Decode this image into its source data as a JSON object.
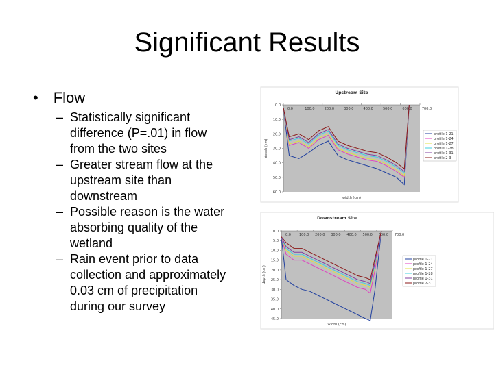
{
  "slide": {
    "title": "Significant Results",
    "bullets": [
      {
        "text": "Flow",
        "items": [
          "Statistically significant difference (P=.01) in flow from the two sites",
          "Greater stream flow at the upstream site than downstream",
          "Possible reason is the water absorbing quality of the wetland",
          "Rain event prior to data collection and approximately 0.03 cm of precipitation during our survey"
        ]
      }
    ]
  },
  "chart_data": [
    {
      "type": "line",
      "title": "Upstream Site",
      "x_label": "width (cm)",
      "y_label": "depth (cm)",
      "y_inverted": true,
      "x": [
        0,
        30,
        80,
        130,
        180,
        230,
        280,
        330,
        380,
        430,
        480,
        530,
        580,
        620,
        645
      ],
      "xlim": [
        0,
        700
      ],
      "ylim": [
        0,
        60
      ],
      "xticks": [
        {
          "value": 0,
          "label": "0.0"
        },
        {
          "value": 100,
          "label": "100.0"
        },
        {
          "value": 200,
          "label": "200.0"
        },
        {
          "value": 300,
          "label": "300.0"
        },
        {
          "value": 400,
          "label": "400.0"
        },
        {
          "value": 500,
          "label": "500.0"
        },
        {
          "value": 600,
          "label": "600.0"
        },
        {
          "value": 700,
          "label": "700.0"
        }
      ],
      "yticks": [
        {
          "value": 0,
          "label": "0.0"
        },
        {
          "value": 10,
          "label": "10.0"
        },
        {
          "value": 20,
          "label": "20.0"
        },
        {
          "value": 30,
          "label": "30.0"
        },
        {
          "value": 40,
          "label": "40.0"
        },
        {
          "value": 50,
          "label": "50.0"
        },
        {
          "value": 60,
          "label": "60.0"
        }
      ],
      "legend": "right",
      "series": [
        {
          "name": "profile 1-21",
          "color": "#1f3f9f",
          "values": [
            2,
            35,
            37,
            33,
            28,
            25,
            35,
            38,
            40,
            42,
            44,
            47,
            50,
            55,
            0
          ]
        },
        {
          "name": "profile 1-24",
          "color": "#e040c0",
          "values": [
            2,
            28,
            26,
            30,
            24,
            21,
            31,
            34,
            36,
            38,
            39,
            42,
            46,
            50,
            0
          ]
        },
        {
          "name": "profile 1-27",
          "color": "#e0e040",
          "values": [
            2,
            27,
            25,
            29,
            23,
            20,
            30,
            33,
            35,
            37,
            38,
            41,
            45,
            49,
            0
          ]
        },
        {
          "name": "profile 1-28",
          "color": "#40d0e0",
          "values": [
            2,
            25,
            23,
            27,
            21,
            18,
            28,
            31,
            33,
            35,
            36,
            39,
            43,
            47,
            0
          ]
        },
        {
          "name": "profile 1-31",
          "color": "#8040a0",
          "values": [
            2,
            24,
            22,
            26,
            20,
            17,
            27,
            30,
            32,
            34,
            35,
            38,
            42,
            46,
            0
          ]
        },
        {
          "name": "profile 2-3",
          "color": "#8b1a1a",
          "values": [
            2,
            22,
            20,
            24,
            18,
            15,
            25,
            28,
            30,
            32,
            33,
            36,
            40,
            44,
            0
          ]
        }
      ]
    },
    {
      "type": "line",
      "title": "Downstream Site",
      "x_label": "width (cm)",
      "y_label": "depth (cm)",
      "y_inverted": true,
      "x": [
        0,
        30,
        80,
        130,
        180,
        230,
        280,
        330,
        380,
        430,
        480,
        530,
        560,
        590,
        630
      ],
      "xlim": [
        0,
        700
      ],
      "ylim": [
        0,
        45
      ],
      "xticks": [
        {
          "value": 0,
          "label": "0.0"
        },
        {
          "value": 100,
          "label": "100.0"
        },
        {
          "value": 200,
          "label": "200.0"
        },
        {
          "value": 300,
          "label": "300.0"
        },
        {
          "value": 400,
          "label": "400.0"
        },
        {
          "value": 500,
          "label": "500.0"
        },
        {
          "value": 600,
          "label": "600.0"
        },
        {
          "value": 700,
          "label": "700.0"
        }
      ],
      "yticks": [
        {
          "value": 0,
          "label": "0.0"
        },
        {
          "value": 5,
          "label": "5.0"
        },
        {
          "value": 10,
          "label": "10.0"
        },
        {
          "value": 15,
          "label": "15.0"
        },
        {
          "value": 20,
          "label": "20.0"
        },
        {
          "value": 25,
          "label": "25.0"
        },
        {
          "value": 30,
          "label": "30.0"
        },
        {
          "value": 35,
          "label": "35.0"
        },
        {
          "value": 40,
          "label": "40.0"
        },
        {
          "value": 45,
          "label": "45.0"
        }
      ],
      "legend": "right",
      "series": [
        {
          "name": "profile 1-21",
          "color": "#1f3f9f",
          "values": [
            3,
            25,
            28,
            30,
            31,
            33,
            35,
            37,
            39,
            41,
            43,
            45,
            46,
            30,
            0
          ]
        },
        {
          "name": "profile 1-24",
          "color": "#e040c0",
          "values": [
            3,
            12,
            15,
            15,
            17,
            19,
            21,
            23,
            25,
            27,
            29,
            30,
            32,
            20,
            0
          ]
        },
        {
          "name": "profile 1-27",
          "color": "#e0e040",
          "values": [
            3,
            10,
            13,
            13,
            15,
            17,
            19,
            21,
            23,
            25,
            27,
            28,
            29,
            18,
            0
          ]
        },
        {
          "name": "profile 1-28",
          "color": "#40d0e0",
          "values": [
            3,
            9,
            12,
            12,
            14,
            16,
            18,
            20,
            22,
            24,
            26,
            27,
            28,
            17,
            0
          ]
        },
        {
          "name": "profile 1-31",
          "color": "#8040a0",
          "values": [
            3,
            8,
            11,
            11,
            13,
            15,
            17,
            19,
            21,
            23,
            25,
            26,
            27,
            16,
            0
          ]
        },
        {
          "name": "profile 2-3",
          "color": "#8b1a1a",
          "values": [
            3,
            6,
            9,
            9,
            11,
            13,
            15,
            17,
            19,
            21,
            23,
            24,
            25,
            14,
            0
          ]
        }
      ]
    }
  ]
}
